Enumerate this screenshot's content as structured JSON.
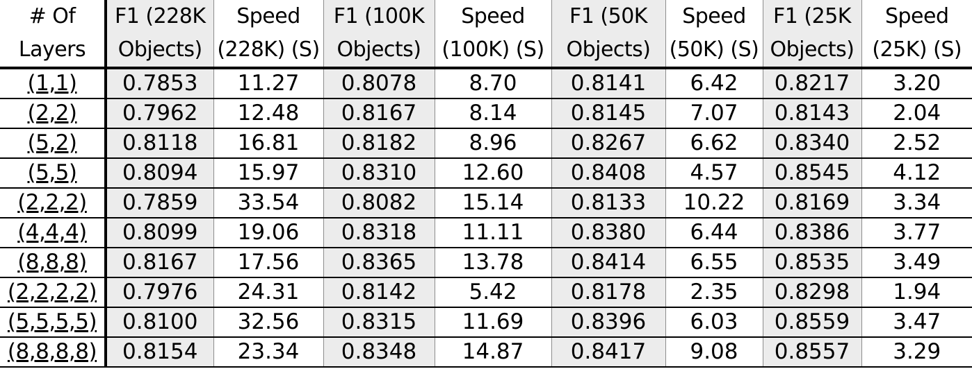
{
  "chart_data": {
    "type": "table",
    "columns": [
      [
        "# Of",
        "Layers"
      ],
      [
        "F1 (228K",
        "Objects)"
      ],
      [
        "Speed",
        "(228K) (S)"
      ],
      [
        "F1 (100K",
        "Objects)"
      ],
      [
        "Speed",
        "(100K) (S)"
      ],
      [
        "F1 (50K",
        "Objects)"
      ],
      [
        "Speed",
        "(50K) (S)"
      ],
      [
        "F1 (25K",
        "Objects)"
      ],
      [
        "Speed",
        "(25K) (S)"
      ]
    ],
    "rows": [
      [
        "(1,1)",
        "0.7853",
        "11.27",
        "0.8078",
        "8.70",
        "0.8141",
        "6.42",
        "0.8217",
        "3.20"
      ],
      [
        "(2,2)",
        "0.7962",
        "12.48",
        "0.8167",
        "8.14",
        "0.8145",
        "7.07",
        "0.8143",
        "2.04"
      ],
      [
        "(5,2)",
        "0.8118",
        "16.81",
        "0.8182",
        "8.96",
        "0.8267",
        "6.62",
        "0.8340",
        "2.52"
      ],
      [
        "(5,5)",
        "0.8094",
        "15.97",
        "0.8310",
        "12.60",
        "0.8408",
        "4.57",
        "0.8545",
        "4.12"
      ],
      [
        "(2,2,2)",
        "0.7859",
        "33.54",
        "0.8082",
        "15.14",
        "0.8133",
        "10.22",
        "0.8169",
        "3.34"
      ],
      [
        "(4,4,4)",
        "0.8099",
        "19.06",
        "0.8318",
        "11.11",
        "0.8380",
        "6.44",
        "0.8386",
        "3.77"
      ],
      [
        "(8,8,8)",
        "0.8167",
        "17.56",
        "0.8365",
        "13.78",
        "0.8414",
        "6.55",
        "0.8535",
        "3.49"
      ],
      [
        "(2,2,2,2)",
        "0.7976",
        "24.31",
        "0.8142",
        "5.42",
        "0.8178",
        "2.35",
        "0.8298",
        "1.94"
      ],
      [
        "(5,5,5,5)",
        "0.8100",
        "32.56",
        "0.8315",
        "11.69",
        "0.8396",
        "6.03",
        "0.8559",
        "3.47"
      ],
      [
        "(8,8,8,8)",
        "0.8154",
        "23.34",
        "0.8348",
        "14.87",
        "0.8417",
        "9.08",
        "0.8557",
        "3.29"
      ]
    ],
    "colors": {
      "f1_column_shade": "#ececec",
      "rule": "#000000",
      "divider": "#8c8c8c"
    }
  }
}
